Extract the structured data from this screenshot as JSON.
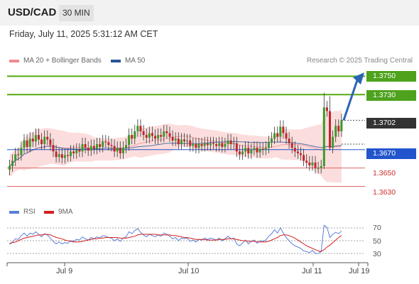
{
  "header": {
    "symbol": "USD/CAD",
    "timeframe": "30 MIN"
  },
  "date_text": "Friday, July 11, 2025 5:31:12 AM CET",
  "legend": {
    "ma20_label": "MA 20 + Bollinger Bands",
    "ma50_label": "MA 50",
    "research": "Research © 2025 Trading Central"
  },
  "rsi_legend": {
    "rsi_label": "RSI",
    "ma_label": "9MA"
  },
  "levels": {
    "target2": "1.3750",
    "target1": "1.3730",
    "last": "1.3702",
    "pivot": "1.3670",
    "support1": "1.3650",
    "support2": "1.3630"
  },
  "rsi_levels": [
    "70",
    "50",
    "30"
  ],
  "x_labels": [
    "Jul 9",
    "Jul 10",
    "Jul 11",
    "Jul 19"
  ],
  "colors": {
    "up_candle": "#3a9a2a",
    "down_candle": "#c0262c",
    "resistance_line": "#55aa11",
    "pivot_line": "#2255cc",
    "support_line": "#e06666",
    "bollinger_fill": "#fbd7d7",
    "ma50": "#2a5599",
    "arrow": "#2a64b4",
    "last_tag": "#333333"
  },
  "chart_data": {
    "type": "candlestick",
    "instrument": "USD/CAD",
    "timeframe": "30 MIN",
    "y_range": [
      1.3618,
      1.3758
    ],
    "levels": [
      {
        "value": 1.375,
        "kind": "resistance"
      },
      {
        "value": 1.373,
        "kind": "resistance"
      },
      {
        "value": 1.3702,
        "kind": "last"
      },
      {
        "value": 1.367,
        "kind": "pivot"
      },
      {
        "value": 1.365,
        "kind": "support"
      },
      {
        "value": 1.363,
        "kind": "support"
      }
    ],
    "closes": [
      1.3652,
      1.3658,
      1.3665,
      1.3664,
      1.3672,
      1.368,
      1.3673,
      1.3682,
      1.3679,
      1.3686,
      1.3681,
      1.3676,
      1.3684,
      1.3681,
      1.3675,
      1.3668,
      1.3662,
      1.3665,
      1.3661,
      1.3664,
      1.3663,
      1.3668,
      1.3666,
      1.367,
      1.3668,
      1.3676,
      1.3672,
      1.3669,
      1.3674,
      1.3671,
      1.3676,
      1.3673,
      1.3679,
      1.3678,
      1.3675,
      1.3674,
      1.3668,
      1.3672,
      1.3666,
      1.3672,
      1.3675,
      1.3686,
      1.3682,
      1.369,
      1.3696,
      1.369,
      1.3686,
      1.3683,
      1.3688,
      1.3685,
      1.3682,
      1.3686,
      1.3684,
      1.369,
      1.3688,
      1.3684,
      1.368,
      1.3682,
      1.3676,
      1.3681,
      1.3679,
      1.368,
      1.3674,
      1.3676,
      1.3672,
      1.3676,
      1.3674,
      1.3677,
      1.3675,
      1.3677,
      1.3676,
      1.3674,
      1.3677,
      1.3673,
      1.3676,
      1.368,
      1.3676,
      1.3677,
      1.3668,
      1.3665,
      1.3668,
      1.3672,
      1.3666,
      1.367,
      1.3672,
      1.3667,
      1.3671,
      1.367,
      1.3672,
      1.3678,
      1.3682,
      1.3688,
      1.3684,
      1.3695,
      1.3688,
      1.3682,
      1.3677,
      1.3672,
      1.3668,
      1.3666,
      1.3664,
      1.3658,
      1.3656,
      1.3653,
      1.3656,
      1.365,
      1.365,
      1.3652,
      1.3716,
      1.3712,
      1.3672,
      1.3684,
      1.3696,
      1.369,
      1.3702
    ],
    "rsi": [
      44,
      48,
      53,
      52,
      58,
      62,
      57,
      62,
      60,
      64,
      60,
      56,
      61,
      59,
      54,
      49,
      45,
      48,
      45,
      47,
      46,
      50,
      49,
      52,
      51,
      56,
      53,
      51,
      55,
      53,
      56,
      54,
      58,
      57,
      55,
      54,
      50,
      53,
      49,
      54,
      56,
      64,
      61,
      66,
      69,
      63,
      59,
      56,
      60,
      58,
      56,
      59,
      57,
      62,
      60,
      57,
      53,
      55,
      50,
      54,
      53,
      54,
      49,
      51,
      48,
      52,
      51,
      54,
      52,
      54,
      53,
      51,
      54,
      50,
      53,
      57,
      53,
      54,
      45,
      42,
      46,
      51,
      45,
      49,
      51,
      46,
      50,
      49,
      51,
      57,
      61,
      67,
      62,
      70,
      62,
      55,
      50,
      45,
      42,
      40,
      38,
      34,
      33,
      31,
      35,
      30,
      30,
      33,
      74,
      71,
      55,
      60,
      63,
      61,
      65
    ],
    "rsi_ma": [
      46,
      47,
      48,
      50,
      52,
      54,
      55,
      56,
      57,
      58,
      59,
      59,
      60,
      60,
      59,
      57,
      55,
      54,
      53,
      51,
      50,
      49,
      48,
      48,
      48,
      49,
      50,
      51,
      52,
      53,
      53,
      54,
      54,
      55,
      55,
      55,
      55,
      55,
      54,
      54,
      54,
      55,
      56,
      57,
      59,
      60,
      60,
      60,
      60,
      60,
      60,
      59,
      59,
      59,
      59,
      59,
      58,
      58,
      57,
      56,
      55,
      55,
      54,
      53,
      52,
      52,
      52,
      52,
      51,
      51,
      51,
      51,
      52,
      52,
      52,
      53,
      53,
      53,
      52,
      51,
      50,
      50,
      49,
      49,
      49,
      48,
      48,
      48,
      48,
      49,
      51,
      53,
      55,
      58,
      59,
      59,
      58,
      56,
      54,
      51,
      48,
      45,
      42,
      40,
      38,
      36,
      34,
      33,
      36,
      40,
      43,
      47,
      51,
      55,
      58
    ],
    "x_labels": [
      "Jul 9",
      "Jul 10",
      "Jul 11",
      "Jul 19"
    ],
    "rsi_levels": [
      70,
      50,
      30
    ]
  }
}
